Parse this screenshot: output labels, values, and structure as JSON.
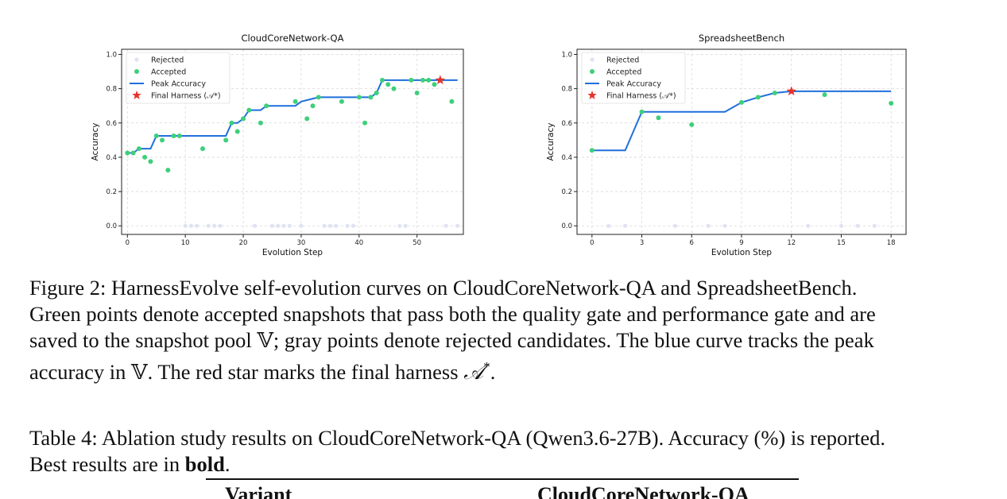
{
  "figure": {
    "caption_line1": "Figure 2: HarnessEvolve self-evolution curves on CloudCoreNetwork-QA and SpreadsheetBench.",
    "caption_line2": "Green points denote accepted snapshots that pass both the quality gate and performance gate and are",
    "caption_line3_a": "saved to the snapshot pool ",
    "caption_line3_b": "; gray points denote rejected candidates. The blue curve tracks the peak",
    "caption_line4_a": "accuracy in ",
    "caption_line4_b": ". The red star marks the final harness ",
    "pool_symbol": "𝕍",
    "harness_symbol": "𝒜",
    "harness_sup": "*",
    "period": "."
  },
  "table": {
    "caption_a": "Table 4: Ablation study results on CloudCoreNetwork-QA (Qwen3.6-27B). Accuracy (%) is reported.",
    "caption_b": "Best results are in ",
    "caption_bold": "bold",
    "caption_end": ".",
    "col_variant": "Variant",
    "col_dataset": "CloudCoreNetwork-QA"
  },
  "colors": {
    "rejected": "#dfe3f2",
    "accepted": "#3fcf7a",
    "peak": "#1f6fdc",
    "star": "#e5332b",
    "grid": "#d8d8d8"
  },
  "chart_data": [
    {
      "type": "scatter",
      "title": "CloudCoreNetwork-QA",
      "xlabel": "Evolution Step",
      "ylabel": "Accuracy",
      "xlim": [
        -1,
        58
      ],
      "ylim": [
        -0.05,
        1.03
      ],
      "xticks": [
        0,
        10,
        20,
        30,
        40,
        50
      ],
      "yticks": [
        0.0,
        0.2,
        0.4,
        0.6,
        0.8,
        1.0
      ],
      "ytick_labels": [
        "0.0",
        "0.2",
        "0.4",
        "0.6",
        "0.8",
        "1.0"
      ],
      "grid": true,
      "legend_position": "top-left",
      "legend": [
        "Rejected",
        "Accepted",
        "Peak Accuracy",
        "Final Harness (𝒜*)"
      ],
      "rejected": {
        "x": [
          10,
          11,
          12,
          14,
          15,
          16,
          22,
          25,
          26,
          27,
          28,
          30,
          34,
          35,
          36,
          38,
          39,
          47,
          48,
          55,
          57
        ],
        "y": [
          0,
          0,
          0,
          0,
          0,
          0,
          0,
          0,
          0,
          0,
          0,
          0,
          0,
          0,
          0,
          0,
          0,
          0,
          0,
          0,
          0
        ]
      },
      "accepted": {
        "x": [
          0,
          1,
          2,
          3,
          4,
          5,
          6,
          7,
          8,
          9,
          13,
          17,
          18,
          19,
          20,
          21,
          23,
          24,
          29,
          31,
          32,
          33,
          37,
          40,
          41,
          42,
          43,
          44,
          45,
          46,
          49,
          50,
          51,
          52,
          53,
          56
        ],
        "y": [
          0.425,
          0.425,
          0.45,
          0.4,
          0.375,
          0.525,
          0.5,
          0.325,
          0.525,
          0.525,
          0.45,
          0.5,
          0.6,
          0.55,
          0.625,
          0.675,
          0.6,
          0.7,
          0.725,
          0.625,
          0.7,
          0.75,
          0.725,
          0.75,
          0.6,
          0.75,
          0.775,
          0.85,
          0.825,
          0.8,
          0.85,
          0.775,
          0.85,
          0.85,
          0.825,
          0.725
        ]
      },
      "peak": {
        "x": [
          0,
          1,
          2,
          4,
          5,
          17,
          18,
          19,
          20,
          21,
          23,
          24,
          29,
          30,
          33,
          42,
          43,
          44,
          57
        ],
        "y": [
          0.425,
          0.425,
          0.45,
          0.45,
          0.525,
          0.525,
          0.6,
          0.6,
          0.625,
          0.675,
          0.675,
          0.7,
          0.7,
          0.725,
          0.75,
          0.75,
          0.775,
          0.85,
          0.85
        ]
      },
      "final": {
        "x": 54,
        "y": 0.85
      }
    },
    {
      "type": "scatter",
      "title": "SpreadsheetBench",
      "xlabel": "Evolution Step",
      "ylabel": "Accuracy",
      "xlim": [
        -0.9,
        18.9
      ],
      "ylim": [
        -0.05,
        1.03
      ],
      "xticks": [
        0,
        3,
        6,
        9,
        12,
        15,
        18
      ],
      "yticks": [
        0.0,
        0.2,
        0.4,
        0.6,
        0.8,
        1.0
      ],
      "ytick_labels": [
        "0.0",
        "0.2",
        "0.4",
        "0.6",
        "0.8",
        "1.0"
      ],
      "grid": true,
      "legend_position": "top-left",
      "legend": [
        "Rejected",
        "Accepted",
        "Peak Accuracy",
        "Final Harness (𝒜*)"
      ],
      "rejected": {
        "x": [
          1,
          2,
          5,
          7,
          8,
          13,
          15,
          16,
          17
        ],
        "y": [
          0,
          0,
          0,
          0,
          0,
          0,
          0,
          0,
          0
        ]
      },
      "accepted": {
        "x": [
          0,
          3,
          4,
          6,
          9,
          10,
          11,
          14,
          18
        ],
        "y": [
          0.44,
          0.665,
          0.63,
          0.59,
          0.72,
          0.75,
          0.775,
          0.765,
          0.715
        ]
      },
      "peak": {
        "x": [
          0,
          2,
          3,
          8,
          9,
          10,
          11,
          12,
          18
        ],
        "y": [
          0.44,
          0.44,
          0.665,
          0.665,
          0.72,
          0.75,
          0.775,
          0.785,
          0.785
        ]
      },
      "final": {
        "x": 12,
        "y": 0.785
      }
    }
  ]
}
